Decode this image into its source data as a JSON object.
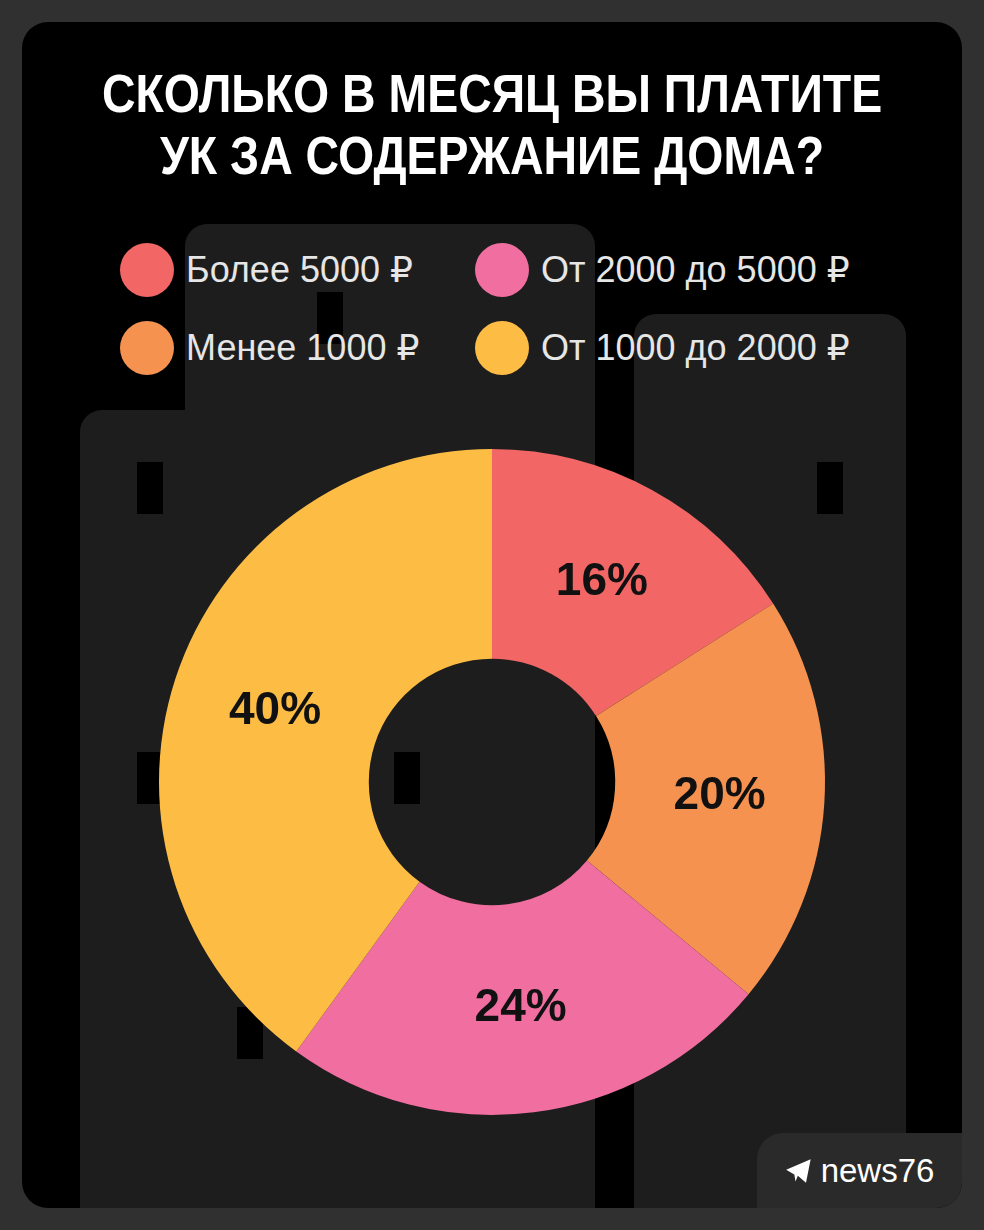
{
  "chart_data": {
    "type": "doughnut",
    "title": "СКОЛЬКО В МЕСЯЦ ВЫ ПЛАТИТЕ УК ЗА СОДЕРЖАНИЕ ДОМА?",
    "categories": [
      "Более 5000 ₽",
      "Менее 1000 ₽",
      "От 2000 до 5000 ₽",
      "От 1000 до 2000 ₽"
    ],
    "values": [
      16,
      20,
      24,
      40
    ],
    "value_labels": [
      "16%",
      "20%",
      "24%",
      "40%"
    ],
    "colors": [
      "#f26666",
      "#f5924f",
      "#f06fa0",
      "#fdbd45"
    ],
    "data_labels": true,
    "legend": "top",
    "annotation": "news76"
  }
}
